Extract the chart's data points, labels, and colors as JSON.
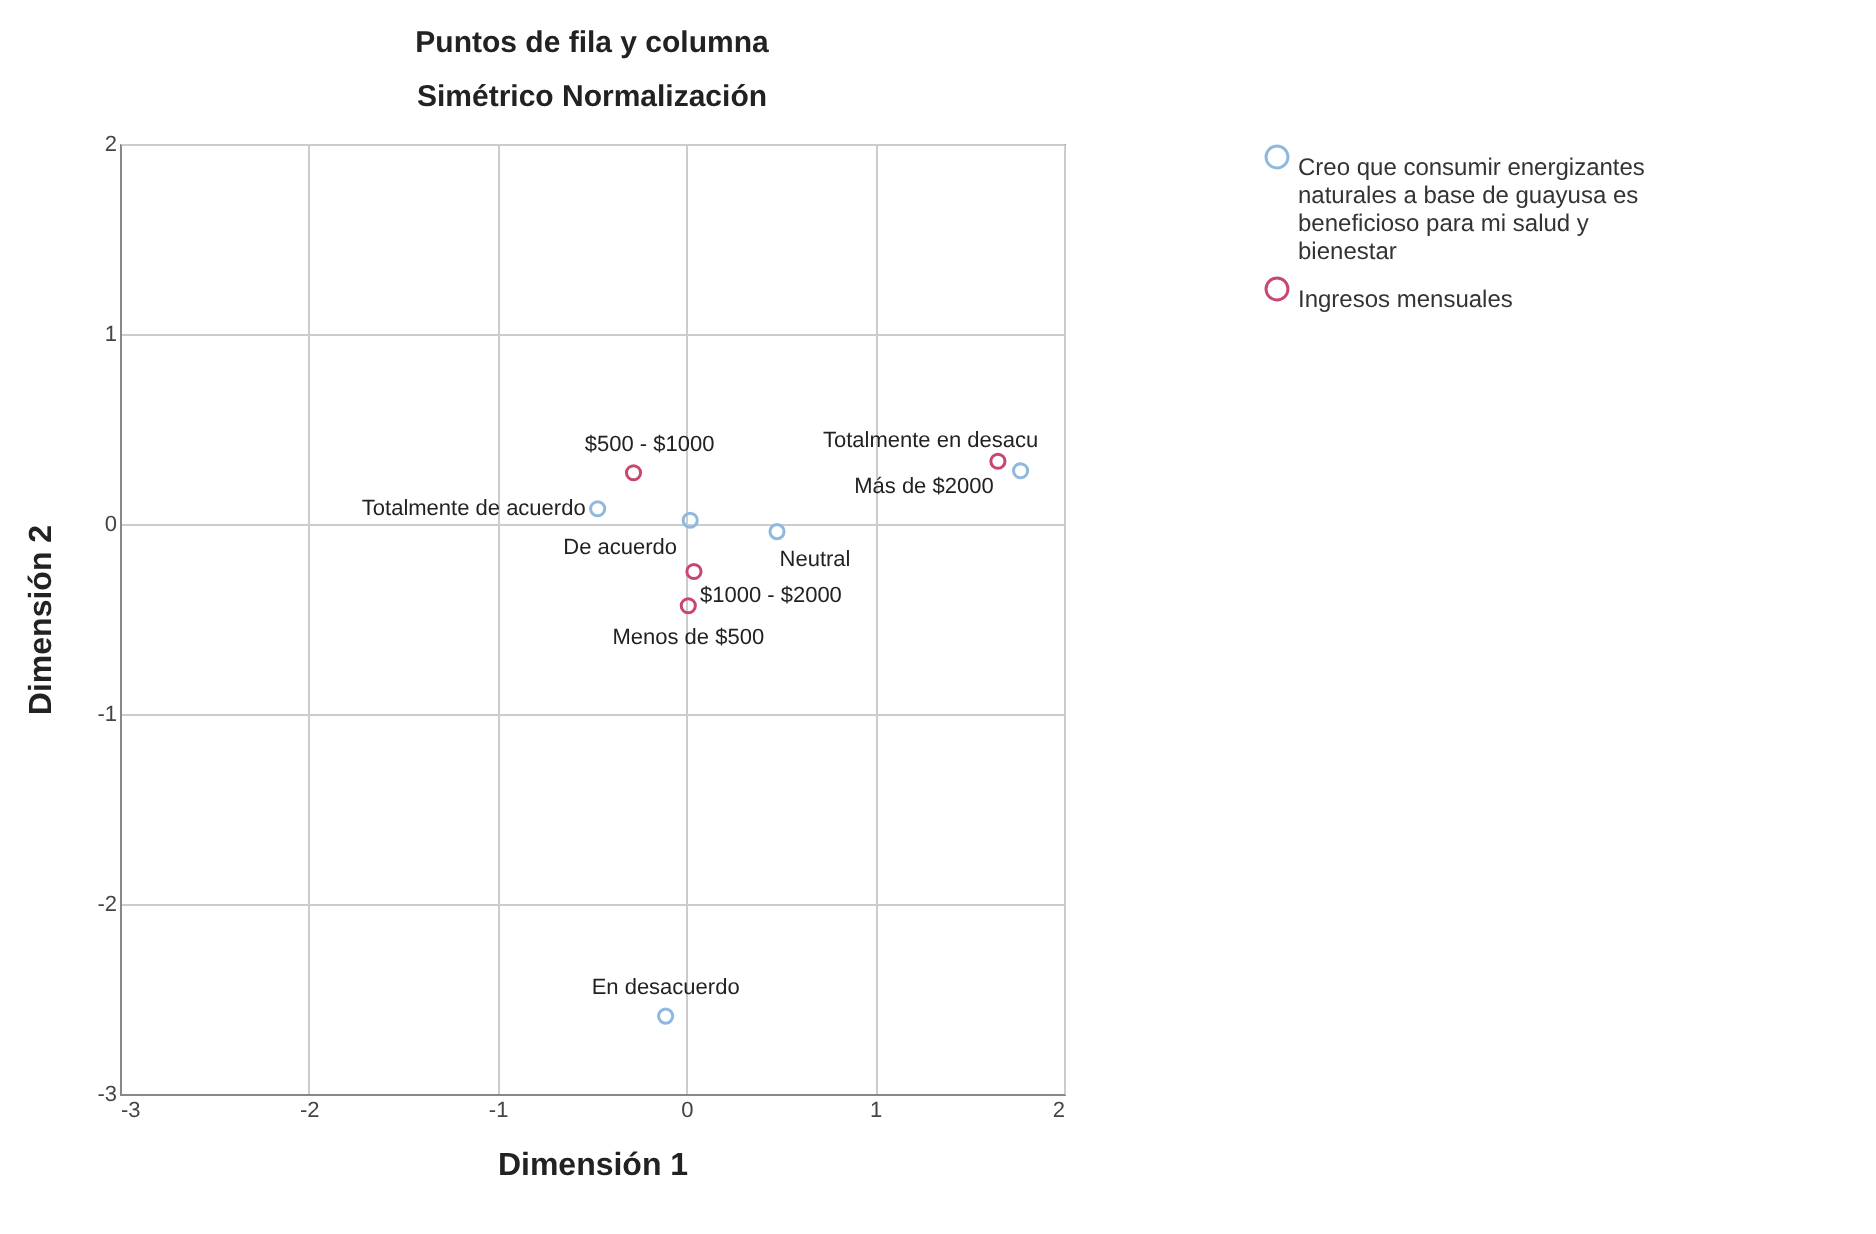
{
  "chart_data": {
    "type": "scatter",
    "title": "Puntos de fila y columna",
    "subtitle": "Simétrico Normalización",
    "xlabel": "Dimensión 1",
    "ylabel": "Dimensión 2",
    "xlim": [
      -3,
      2
    ],
    "xticks": [
      -3,
      -2,
      -1,
      0,
      1,
      2
    ],
    "ylim": [
      -3,
      2
    ],
    "yticks": [
      -3,
      -2,
      -1,
      0,
      1,
      2
    ],
    "grid": true,
    "legend": "top right",
    "marker": "circle",
    "series": [
      {
        "name": "Creo que consumir energizantes naturales a base de guayusa es beneficioso para mi salud y bienestar",
        "color": "#8fb8e0",
        "x": [
          -0.47,
          0.02,
          0.48,
          1.77,
          -0.11
        ],
        "values": [
          0.08,
          0.02,
          -0.04,
          0.28,
          -2.59
        ]
      },
      {
        "name": "Ingresos mensuales",
        "color": "#c8476e",
        "x": [
          -0.28,
          1.65,
          0.04,
          0.01
        ],
        "values": [
          0.27,
          0.33,
          -0.25,
          -0.43
        ]
      }
    ],
    "annotations": [
      {
        "text": "$500 - $1000",
        "x": -0.28,
        "y": 0.27
      },
      {
        "text": "Totalmente en desacu",
        "x": 1.77,
        "y": 0.28
      },
      {
        "text": "Más de $2000",
        "x": 1.65,
        "y": 0.33
      },
      {
        "text": "Totalmente de acuerdo",
        "x": -0.47,
        "y": 0.08
      },
      {
        "text": "De acuerdo",
        "x": 0.02,
        "y": 0.02
      },
      {
        "text": "Neutral",
        "x": 0.48,
        "y": -0.04
      },
      {
        "text": "$1000 - $2000",
        "x": 0.04,
        "y": -0.25
      },
      {
        "text": "Menos de $500",
        "x": 0.01,
        "y": -0.43
      },
      {
        "text": "En desacuerdo",
        "x": -0.11,
        "y": -2.59
      }
    ]
  }
}
